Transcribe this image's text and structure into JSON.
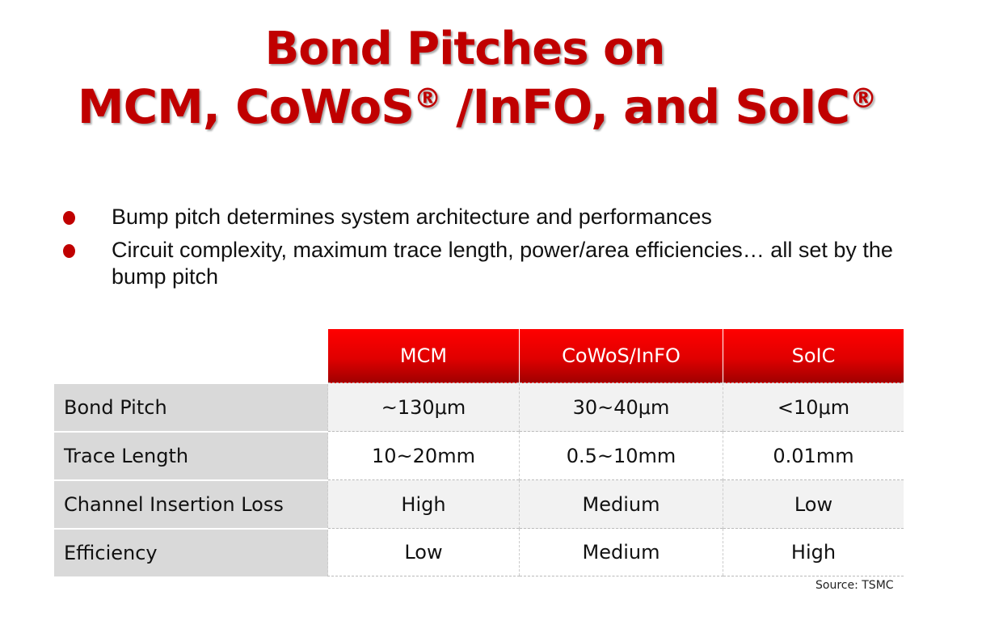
{
  "title": {
    "line1": "Bond Pitches on",
    "line2_part1": "MCM, CoWoS",
    "reg1": "®",
    "line2_part2": " /InFO, and SoIC",
    "reg2": "®"
  },
  "bullets": [
    "Bump pitch determines system architecture and performances",
    "Circuit complexity, maximum trace length, power/area efficiencies… all set by the bump pitch"
  ],
  "table": {
    "headers": [
      "",
      "MCM",
      "CoWoS/InFO",
      "SoIC"
    ],
    "rows": [
      {
        "label": "Bond Pitch",
        "values": [
          "~130μm",
          "30~40μm",
          "<10μm"
        ]
      },
      {
        "label": "Trace Length",
        "values": [
          "10~20mm",
          "0.5~10mm",
          "0.01mm"
        ]
      },
      {
        "label": "Channel Insertion Loss",
        "values": [
          "High",
          "Medium",
          "Low"
        ]
      },
      {
        "label": "Efficiency",
        "values": [
          "Low",
          "Medium",
          "High"
        ]
      }
    ]
  },
  "source": "Source: TSMC",
  "colors": {
    "accent": "#c00000",
    "header_red": "#e00000",
    "label_bg": "#d9d9d9"
  }
}
